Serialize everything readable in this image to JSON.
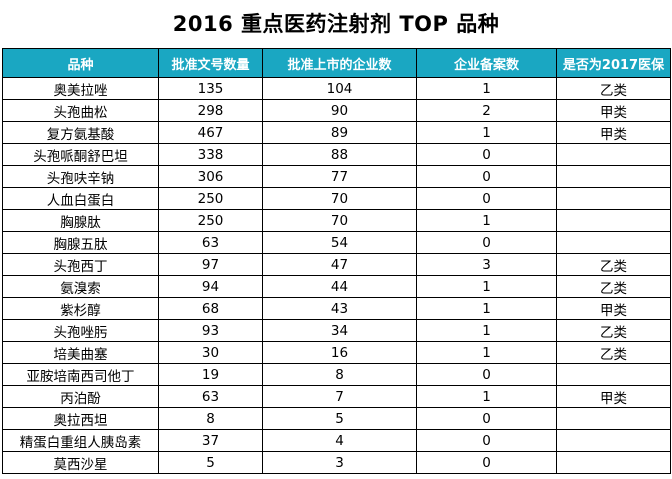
{
  "title": "2016 重点医药注射剂 TOP 品种",
  "colors": {
    "header_bg": "#1aa7c2",
    "header_text": "#ffffff",
    "border": "#000000"
  },
  "table": {
    "headers": [
      "品种",
      "批准文号数量",
      "批准上市的企业数",
      "企业备案数",
      "是否为2017医保"
    ],
    "rows": [
      [
        "奥美拉唑",
        "135",
        "104",
        "1",
        "乙类"
      ],
      [
        "头孢曲松",
        "298",
        "90",
        "2",
        "甲类"
      ],
      [
        "复方氨基酸",
        "467",
        "89",
        "1",
        "甲类"
      ],
      [
        "头孢哌酮舒巴坦",
        "338",
        "88",
        "0",
        ""
      ],
      [
        "头孢呋辛钠",
        "306",
        "77",
        "0",
        ""
      ],
      [
        "人血白蛋白",
        "250",
        "70",
        "0",
        ""
      ],
      [
        "胸腺肽",
        "250",
        "70",
        "1",
        ""
      ],
      [
        "胸腺五肽",
        "63",
        "54",
        "0",
        ""
      ],
      [
        "头孢西丁",
        "97",
        "47",
        "3",
        "乙类"
      ],
      [
        "氨溴索",
        "94",
        "44",
        "1",
        "乙类"
      ],
      [
        "紫杉醇",
        "68",
        "43",
        "1",
        "甲类"
      ],
      [
        "头孢唑肟",
        "93",
        "34",
        "1",
        "乙类"
      ],
      [
        "培美曲塞",
        "30",
        "16",
        "1",
        "乙类"
      ],
      [
        "亚胺培南西司他丁",
        "19",
        "8",
        "0",
        ""
      ],
      [
        "丙泊酚",
        "63",
        "7",
        "1",
        "甲类"
      ],
      [
        "奥拉西坦",
        "8",
        "5",
        "0",
        ""
      ],
      [
        "精蛋白重组人胰岛素",
        "37",
        "4",
        "0",
        ""
      ],
      [
        "莫西沙星",
        "5",
        "3",
        "0",
        ""
      ]
    ]
  }
}
